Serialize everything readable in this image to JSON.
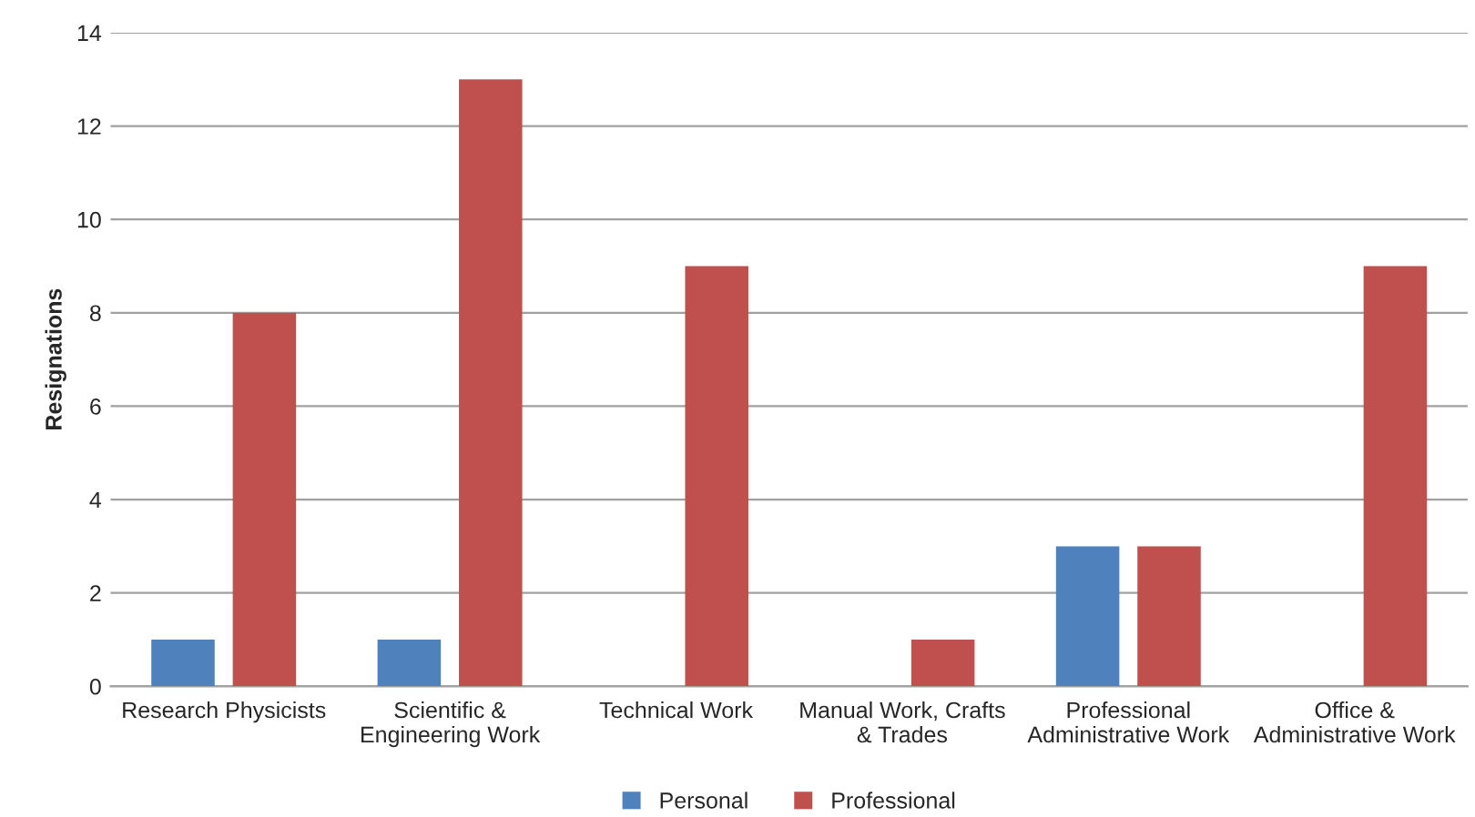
{
  "chart_data": {
    "type": "bar",
    "ylabel": "Resignations",
    "categories": [
      "Research Physicists",
      "Scientific &\nEngineering Work",
      "Technical Work",
      "Manual Work, Crafts\n& Trades",
      "Professional\nAdministrative Work",
      "Office &\nAdministrative Work"
    ],
    "series": [
      {
        "name": "Personal",
        "color": "#4f81bd",
        "values": [
          1,
          1,
          null,
          null,
          3,
          null
        ]
      },
      {
        "name": "Professional",
        "color": "#c0504d",
        "values": [
          8,
          13,
          9,
          1,
          3,
          9
        ]
      }
    ],
    "ylim": [
      0,
      14
    ],
    "yticks": [
      0,
      2,
      4,
      6,
      8,
      10,
      12,
      14
    ],
    "grid": "y",
    "legend": "bottom"
  }
}
